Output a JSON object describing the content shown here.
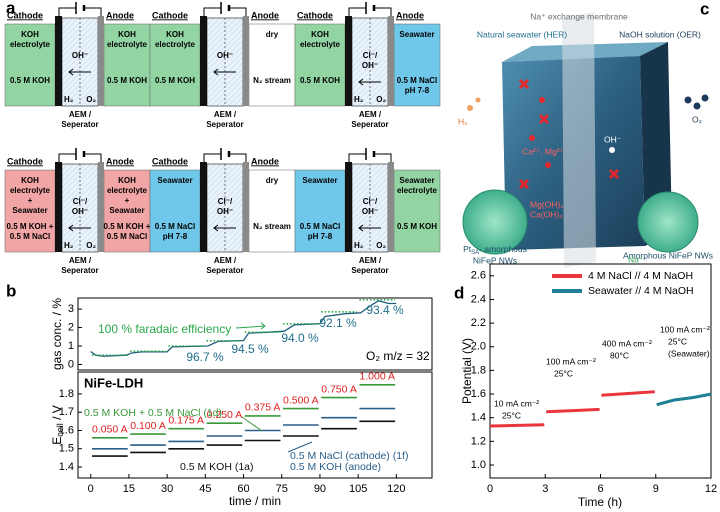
{
  "panel_labels": [
    "a",
    "b",
    "c",
    "d"
  ],
  "cell_common": {
    "separator": [
      "AEM /",
      "Seperator"
    ]
  },
  "cells": [
    {
      "cathode_label": "Cathode",
      "anode_label": "Anode",
      "left_color": "#93d4a3",
      "right_color": "#93d4a3",
      "left_top": [
        "KOH",
        "electrolyte"
      ],
      "left_bottom": [
        "0.5 M KOH"
      ],
      "right_top": [
        "KOH",
        "electrolyte"
      ],
      "right_bottom": [
        "0.5 M KOH"
      ],
      "ions": [
        "OH⁻"
      ],
      "gases": [
        "H₂",
        "O₂"
      ]
    },
    {
      "cathode_label": "Cathode",
      "anode_label": "Anode",
      "left_color": "#93d4a3",
      "right_color": "#ffffff",
      "left_top": [
        "KOH",
        "electrolyte"
      ],
      "left_bottom": [
        "0.5 M KOH"
      ],
      "right_top": [
        "dry"
      ],
      "right_bottom": [
        "N₂ stream"
      ],
      "ions": [
        "OH⁻"
      ]
    },
    {
      "cathode_label": "Cathode",
      "anode_label": "Anode",
      "left_color": "#93d4a3",
      "right_color": "#6fc7ea",
      "left_top": [
        "KOH",
        "electrolyte"
      ],
      "left_bottom": [
        "0.5 M KOH"
      ],
      "right_top": [
        "Seawater"
      ],
      "right_bottom": [
        "0.5 M NaCl",
        "pH 7-8"
      ],
      "ions": [
        "Cl⁻/",
        "OH⁻"
      ],
      "gases": [
        "H₂",
        "O₂"
      ]
    },
    {
      "cathode_label": "Cathode",
      "anode_label": "Anode",
      "left_color": "#f2a5a5",
      "right_color": "#f2a5a5",
      "left_top": [
        "KOH",
        "electrolyte",
        "+",
        "Seawater"
      ],
      "left_bottom": [
        "0.5 M KOH +",
        "0.5 M NaCl"
      ],
      "right_top": [
        "KOH",
        "electrolyte",
        "+",
        "Seawater"
      ],
      "right_bottom": [
        "0.5 M KOH +",
        "0.5 M NaCl"
      ],
      "ions": [
        "Cl⁻/",
        "OH⁻"
      ],
      "gases": [
        "H₂",
        "O₂"
      ]
    },
    {
      "cathode_label": "Cathode",
      "anode_label": "Anode",
      "left_color": "#6fc7ea",
      "right_color": "#ffffff",
      "left_top": [
        "Seawater"
      ],
      "left_bottom": [
        "0.5 M NaCl",
        "pH 7-8"
      ],
      "right_top": [
        "dry"
      ],
      "right_bottom": [
        "N₂ stream"
      ],
      "ions": [
        "Cl⁻/",
        "OH⁻"
      ]
    },
    {
      "left_color": "#6fc7ea",
      "right_color": "#93d4a3",
      "left_top": [
        "Seawater"
      ],
      "left_bottom": [
        "0.5 M NaCl",
        "pH 7-8"
      ],
      "right_top": [
        "Seawater",
        "electrolyte"
      ],
      "right_bottom": [
        "0.5 M KOH"
      ],
      "ions": [
        "Cl⁻/",
        "OH⁻"
      ],
      "gases": [
        "H₂",
        "O₂"
      ]
    }
  ],
  "panel_c": {
    "membrane": "Na⁺ exchange membrane",
    "left_title": "Natural seawater (HER)",
    "right_title": "NaOH solution (OER)",
    "h2": "H₂",
    "o2": "O₂",
    "cations": "Ca²⁺, Mg²⁺",
    "oh": "OH⁻",
    "precipitates": [
      "Mg(OH)₂",
      "Ca(OH)₂"
    ],
    "left_catalyst": [
      "Pt",
      "SA",
      "- amorphous",
      "NiFeP NWs"
    ],
    "right_catalyst": "Amorphous NiFeP NWs",
    "na": "Na⁺"
  },
  "chart_data": [
    {
      "type": "line",
      "y_label": "gas conc. / %",
      "xlim": [
        -5,
        134
      ],
      "ylim": [
        -0.3,
        3.6
      ],
      "yticks": [
        0,
        1,
        2,
        3
      ],
      "series": [
        {
          "color": "#1f5f7a",
          "x": [
            0,
            2,
            5,
            14,
            16,
            20,
            30,
            32,
            40,
            46,
            50,
            60,
            62,
            70,
            76,
            80,
            90,
            92,
            100,
            106,
            110,
            113,
            117,
            120
          ],
          "values": [
            0.7,
            0.5,
            0.45,
            0.5,
            0.62,
            0.68,
            0.68,
            0.95,
            0.98,
            1.0,
            1.25,
            1.3,
            1.7,
            1.75,
            1.8,
            2.15,
            2.2,
            2.6,
            2.75,
            2.8,
            3.2,
            3.45,
            3.3,
            3.3
          ]
        },
        {
          "color": "#2aa84a",
          "line_style": "dotted",
          "x": [
            0.5,
            14.5,
            14.5,
            15.5,
            29.5,
            29.5,
            30.5,
            44.5,
            44.5,
            45.5,
            59.5,
            59.5,
            60.5,
            74.5,
            74.5,
            75.5,
            89.5,
            89.5,
            90.5,
            104.5,
            104.5,
            105.5,
            119.5
          ],
          "values": [
            0.5,
            0.5,
            null,
            0.72,
            0.72,
            null,
            1.0,
            1.0,
            null,
            1.28,
            1.28,
            null,
            1.75,
            1.75,
            null,
            2.2,
            2.2,
            null,
            2.85,
            2.85,
            null,
            3.5,
            3.5
          ]
        }
      ],
      "annotations": [
        {
          "text": "100 % faradaic efficiency",
          "color": "#2aa84a"
        },
        {
          "text": "96.7 %",
          "color": "#1f6f8b"
        },
        {
          "text": "94.5 %",
          "color": "#1f6f8b"
        },
        {
          "text": "94.0 %",
          "color": "#1f6f8b"
        },
        {
          "text": "92.1 %",
          "color": "#1f6f8b"
        },
        {
          "text": "93.4 %",
          "color": "#1f6f8b"
        },
        {
          "text": "O₂ m/z = 32",
          "color": "#000000"
        }
      ]
    },
    {
      "type": "line",
      "y_label": [
        "E",
        "cell",
        " / V"
      ],
      "x_label": "time / min",
      "xlim": [
        -5,
        134
      ],
      "ylim": [
        1.34,
        1.92
      ],
      "xticks": [
        0,
        15,
        30,
        45,
        60,
        75,
        90,
        105,
        120
      ],
      "yticks": [
        1.4,
        1.5,
        1.6,
        1.7,
        1.8
      ],
      "series": [
        {
          "label_lines": [
            "0.5 M KOH + 0.5 M NaCl (1d)"
          ],
          "color": "#3a9a3a",
          "x": [
            0.5,
            14.5,
            14.5,
            15.5,
            29.5,
            29.5,
            30.5,
            44.5,
            44.5,
            45.5,
            59.5,
            59.5,
            60.5,
            74.5,
            74.5,
            75.5,
            89.5,
            89.5,
            90.5,
            104.5,
            104.5,
            105.5,
            119.5
          ],
          "values": [
            1.56,
            1.56,
            null,
            1.58,
            1.58,
            null,
            1.61,
            1.61,
            null,
            1.64,
            1.64,
            null,
            1.68,
            1.68,
            null,
            1.72,
            1.72,
            null,
            1.78,
            1.78,
            null,
            1.85,
            1.85
          ]
        },
        {
          "label_lines": [
            "0.5 M NaCl (cathode) (1f)",
            "0.5 M KOH (anode)"
          ],
          "color": "#2a5f8a",
          "x": [
            0.5,
            14.5,
            14.5,
            15.5,
            29.5,
            29.5,
            30.5,
            44.5,
            44.5,
            45.5,
            59.5,
            59.5,
            60.5,
            74.5,
            74.5,
            75.5,
            89.5,
            89.5,
            90.5,
            104.5,
            104.5,
            105.5,
            119.5
          ],
          "values": [
            1.5,
            1.5,
            null,
            1.52,
            1.52,
            null,
            1.54,
            1.54,
            null,
            1.57,
            1.57,
            null,
            1.6,
            1.6,
            null,
            1.63,
            1.63,
            null,
            1.67,
            1.67,
            null,
            1.72,
            1.72
          ]
        },
        {
          "label_lines": [
            "0.5 M KOH (1a)"
          ],
          "color": "#111111",
          "x": [
            0.5,
            14.5,
            14.5,
            15.5,
            29.5,
            29.5,
            30.5,
            44.5,
            44.5,
            45.5,
            59.5,
            59.5,
            60.5,
            74.5,
            74.5,
            75.5,
            89.5,
            89.5,
            90.5,
            104.5,
            104.5,
            105.5,
            119.5
          ],
          "values": [
            1.46,
            1.46,
            null,
            1.48,
            1.48,
            null,
            1.5,
            1.5,
            null,
            1.52,
            1.52,
            null,
            1.545,
            1.545,
            null,
            1.57,
            1.57,
            null,
            1.61,
            1.61,
            null,
            1.65,
            1.65
          ]
        }
      ],
      "annotations": [
        {
          "text": "NiFe-LDH",
          "color": "#000000"
        }
      ],
      "current_labels": [
        "0.050 A",
        "0.100 A",
        "0.175 A",
        "0.250 A",
        "0.375 A",
        "0.500 A",
        "0.750 A",
        "1.000 A"
      ],
      "current_color": "#e02020"
    },
    {
      "type": "line",
      "x_label": "Time (h)",
      "y_label": "Potential (V)",
      "xlim": [
        0,
        12
      ],
      "ylim": [
        0.89,
        2.7
      ],
      "xticks": [
        0,
        3,
        6,
        9,
        12
      ],
      "yticks": [
        {
          "value": 1,
          "label": "1.0"
        },
        1.2,
        1.4,
        1.6,
        1.8,
        {
          "value": 2,
          "label": "2.0"
        },
        2.2,
        2.4,
        2.6
      ],
      "legend": "upper left",
      "series": [
        {
          "name": "4 M NaCl // 4 M NaOH",
          "color": "#e8363c",
          "x": [
            0,
            1.5,
            2.95,
            3,
            3.05,
            4.5,
            5.95,
            6,
            6.05,
            7.5,
            8.95
          ],
          "values": [
            1.33,
            1.335,
            1.34,
            null,
            1.45,
            1.46,
            1.47,
            null,
            1.59,
            1.605,
            1.62
          ]
        },
        {
          "name": "Seawater // 4 M NaOH",
          "color": "#1f7f95",
          "x": [
            9.05,
            10,
            11,
            12
          ],
          "values": [
            1.51,
            1.55,
            1.57,
            1.6
          ]
        }
      ],
      "annotations": [
        {
          "lines": [
            "10 mA cm⁻²",
            "25°C"
          ]
        },
        {
          "lines": [
            "100 mA cm⁻²",
            "25°C"
          ]
        },
        {
          "lines": [
            "400 mA cm⁻²",
            "80°C"
          ]
        },
        {
          "lines": [
            "100 mA cm⁻²",
            "25°C",
            "(Seawater)"
          ]
        }
      ]
    }
  ]
}
